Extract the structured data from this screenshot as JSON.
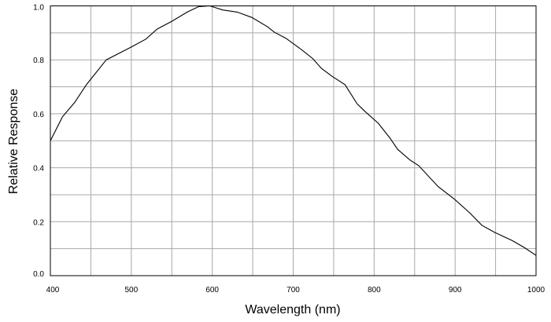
{
  "chart_data": {
    "type": "line",
    "title": "",
    "xlabel": "Wavelength (nm)",
    "ylabel": "Relative Response",
    "xlim": [
      400,
      1000
    ],
    "ylim": [
      0,
      1.0
    ],
    "x_ticks": [
      400,
      500,
      600,
      700,
      800,
      900,
      1000
    ],
    "x_tick_labels": [
      "400",
      "500",
      "600",
      "700",
      "800",
      "900",
      "1000"
    ],
    "y_ticks": [
      0,
      0.2,
      0.4,
      0.6,
      0.8,
      1.0
    ],
    "y_tick_labels": [
      "0.0",
      "0.2",
      "0.4",
      "0.6",
      "0.8",
      "1.0"
    ],
    "grid": true,
    "grid_x_step": 50,
    "grid_y_step": 0.1,
    "colors": {
      "line": "#000000",
      "grid": "#a8a8a8",
      "axis": "#000000"
    },
    "series": [
      {
        "x": [
          400,
          415,
          430,
          445,
          469,
          499,
          518,
          532,
          550,
          569,
          583,
          597,
          613,
          631,
          649,
          668,
          677,
          691,
          711,
          724,
          735,
          748,
          764,
          779,
          789,
          805,
          819,
          829,
          844,
          855,
          879,
          899,
          918,
          933,
          949,
          970,
          985,
          1000
        ],
        "y": [
          0.5,
          0.589,
          0.642,
          0.71,
          0.8,
          0.846,
          0.877,
          0.914,
          0.943,
          0.977,
          0.997,
          1.0,
          0.985,
          0.977,
          0.957,
          0.923,
          0.902,
          0.88,
          0.836,
          0.805,
          0.768,
          0.739,
          0.708,
          0.637,
          0.608,
          0.565,
          0.512,
          0.468,
          0.429,
          0.408,
          0.33,
          0.284,
          0.233,
          0.187,
          0.16,
          0.131,
          0.105,
          0.075
        ]
      }
    ]
  }
}
